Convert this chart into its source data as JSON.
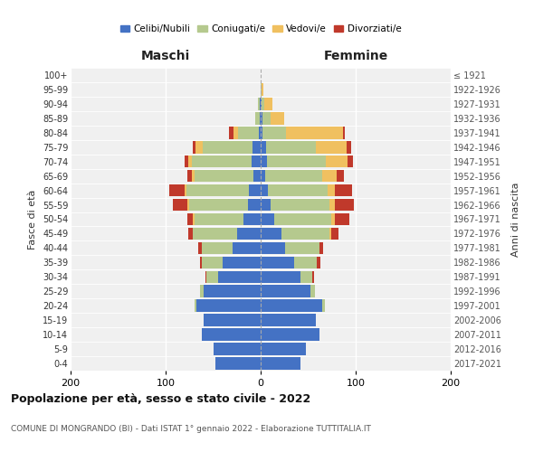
{
  "age_groups": [
    "0-4",
    "5-9",
    "10-14",
    "15-19",
    "20-24",
    "25-29",
    "30-34",
    "35-39",
    "40-44",
    "45-49",
    "50-54",
    "55-59",
    "60-64",
    "65-69",
    "70-74",
    "75-79",
    "80-84",
    "85-89",
    "90-94",
    "95-99",
    "100+"
  ],
  "birth_years": [
    "2017-2021",
    "2012-2016",
    "2007-2011",
    "2002-2006",
    "1997-2001",
    "1992-1996",
    "1987-1991",
    "1982-1986",
    "1977-1981",
    "1972-1976",
    "1967-1971",
    "1962-1966",
    "1957-1961",
    "1952-1956",
    "1947-1951",
    "1942-1946",
    "1937-1941",
    "1932-1936",
    "1927-1931",
    "1922-1926",
    "≤ 1921"
  ],
  "maschi": {
    "celibi": [
      48,
      50,
      62,
      60,
      68,
      60,
      45,
      40,
      30,
      25,
      18,
      13,
      12,
      8,
      10,
      9,
      2,
      1,
      1,
      0,
      0
    ],
    "coniugati": [
      0,
      0,
      0,
      0,
      2,
      4,
      12,
      22,
      32,
      46,
      52,
      62,
      66,
      62,
      62,
      52,
      22,
      5,
      2,
      0,
      0
    ],
    "vedovi": [
      0,
      0,
      0,
      0,
      0,
      0,
      0,
      0,
      0,
      0,
      1,
      2,
      2,
      2,
      4,
      8,
      5,
      0,
      0,
      0,
      0
    ],
    "divorziati": [
      0,
      0,
      0,
      0,
      0,
      0,
      1,
      2,
      4,
      5,
      6,
      15,
      16,
      5,
      4,
      2,
      4,
      0,
      0,
      0,
      0
    ]
  },
  "femmine": {
    "nubili": [
      42,
      48,
      62,
      58,
      65,
      52,
      42,
      35,
      26,
      22,
      14,
      10,
      8,
      5,
      7,
      6,
      2,
      2,
      1,
      0,
      0
    ],
    "coniugate": [
      0,
      0,
      0,
      0,
      3,
      5,
      12,
      24,
      36,
      50,
      60,
      62,
      62,
      60,
      62,
      52,
      25,
      8,
      3,
      1,
      0
    ],
    "vedove": [
      0,
      0,
      0,
      0,
      0,
      0,
      0,
      0,
      0,
      2,
      4,
      6,
      8,
      15,
      22,
      32,
      60,
      15,
      8,
      2,
      0
    ],
    "divorziate": [
      0,
      0,
      0,
      0,
      0,
      0,
      2,
      4,
      4,
      8,
      15,
      20,
      18,
      8,
      6,
      5,
      2,
      0,
      0,
      0,
      0
    ]
  },
  "colors": {
    "celibi": "#4472c4",
    "coniugati": "#b5c98e",
    "vedovi": "#f0c060",
    "divorziati": "#c0392b"
  },
  "legend_labels": [
    "Celibi/Nubili",
    "Coniugati/e",
    "Vedovi/e",
    "Divorziati/e"
  ],
  "xlabel_left": "Maschi",
  "xlabel_right": "Femmine",
  "ylabel_left": "Fasce di età",
  "ylabel_right": "Anni di nascita",
  "title": "Popolazione per età, sesso e stato civile - 2022",
  "subtitle": "COMUNE DI MONGRANDO (BI) - Dati ISTAT 1° gennaio 2022 - Elaborazione TUTTITALIA.IT",
  "xlim": 200,
  "bg_color": "#f0f0f0"
}
